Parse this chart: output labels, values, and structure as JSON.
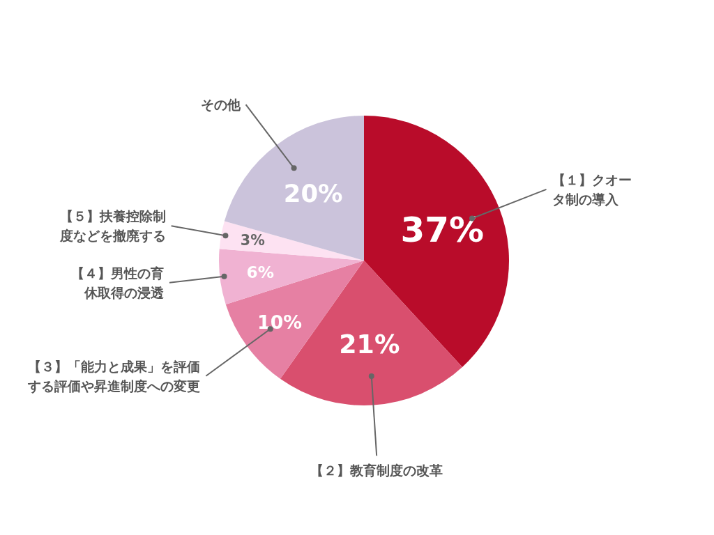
{
  "chart_data": {
    "type": "pie",
    "categories": [
      "【１】クオータ制の導入",
      "【２】教育制度の改革",
      "【３】「能力と成果」を評価する評価や昇進制度への変更",
      "【４】男性の育休取得の浸透",
      "【５】扶養控除制度などを撤廃する",
      "その他"
    ],
    "values": [
      37,
      21,
      10,
      6,
      3,
      20
    ],
    "value_labels": [
      "37%",
      "21%",
      "10%",
      "6%",
      "3%",
      "20%"
    ],
    "colors": [
      "#b90c2a",
      "#d94f6e",
      "#e680a3",
      "#f0b2d2",
      "#fde2f2",
      "#cbc3db"
    ]
  }
}
